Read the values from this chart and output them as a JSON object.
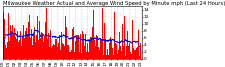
{
  "title": "Milwaukee Weather Actual and Average Wind Speed by Minute mph (Last 24 Hours)",
  "n_points": 1440,
  "ylim": [
    0,
    15
  ],
  "yticks": [
    0,
    2,
    4,
    6,
    8,
    10,
    12,
    14
  ],
  "background_color": "#ffffff",
  "bar_color": "#ff0000",
  "line_color": "#0000ff",
  "grid_color": "#aaaaaa",
  "title_fontsize": 3.8,
  "tick_fontsize": 3.2,
  "seed": 99
}
